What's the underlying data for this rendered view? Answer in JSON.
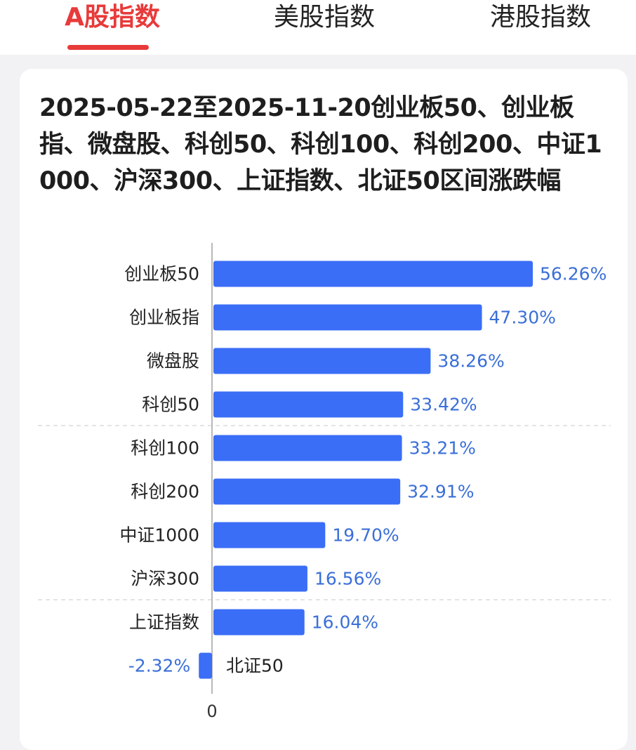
{
  "tabs": [
    {
      "label": "A股指数",
      "active": true
    },
    {
      "label": "美股指数",
      "active": false
    },
    {
      "label": "港股指数",
      "active": false
    }
  ],
  "colors": {
    "accent": "#e83a3a",
    "bar": "#3b6ef6",
    "value_label": "#3a6fd8"
  },
  "chart_data": {
    "type": "bar",
    "orientation": "horizontal",
    "title": "2025-05-22至2025-11-20创业板50、创业板指、微盘股、科创50、科创100、科创200、中证1000、沪深300、上证指数、北证50区间涨跌幅",
    "categories": [
      "创业板50",
      "创业板指",
      "微盘股",
      "科创50",
      "科创100",
      "科创200",
      "中证1000",
      "沪深300",
      "上证指数",
      "北证50"
    ],
    "values": [
      56.26,
      47.3,
      38.26,
      33.42,
      33.21,
      32.91,
      19.7,
      16.56,
      16.04,
      -2.32
    ],
    "value_labels": [
      "56.26%",
      "47.30%",
      "38.26%",
      "33.42%",
      "33.21%",
      "32.91%",
      "19.70%",
      "16.56%",
      "16.04%",
      "-2.32%"
    ],
    "x_tick_labels": [
      "0"
    ],
    "xlim": [
      -2.32,
      56.26
    ],
    "grid": false,
    "legend": "none"
  }
}
